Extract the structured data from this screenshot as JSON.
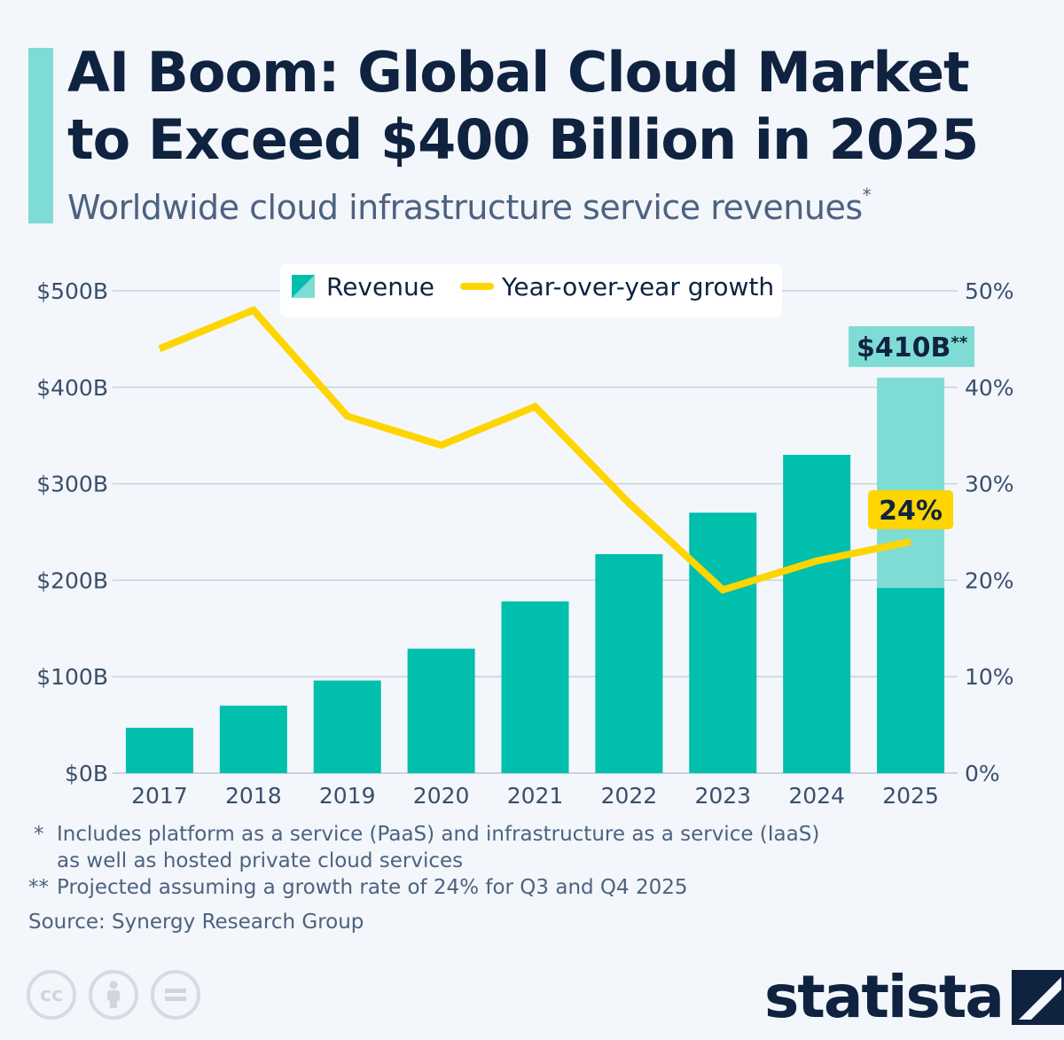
{
  "header": {
    "title": "AI Boom: Global Cloud Market to Exceed $400 Billion in 2025",
    "subtitle": "Worldwide cloud infrastructure service revenues",
    "subtitle_mark": "*"
  },
  "chart_data": {
    "type": "bar",
    "categories": [
      "2017",
      "2018",
      "2019",
      "2020",
      "2021",
      "2022",
      "2023",
      "2024",
      "2025"
    ],
    "series": [
      {
        "name": "Revenue",
        "type": "bar",
        "axis": "left",
        "values": [
          47,
          70,
          96,
          129,
          178,
          227,
          270,
          330,
          410
        ],
        "actual_2025": 192,
        "projected_2025": 410
      },
      {
        "name": "Year-over-year growth",
        "type": "line",
        "axis": "right",
        "values": [
          44,
          48,
          37,
          34,
          38,
          28,
          19,
          22,
          24
        ]
      }
    ],
    "left_axis": {
      "ticks": [
        "$0B",
        "$100B",
        "$200B",
        "$300B",
        "$400B",
        "$500B"
      ],
      "ylim": [
        0,
        500
      ]
    },
    "right_axis": {
      "ticks": [
        "0%",
        "10%",
        "20%",
        "30%",
        "40%",
        "50%"
      ],
      "ylim": [
        0,
        50
      ]
    },
    "annotations": {
      "bar_label": "$410B",
      "bar_label_mark": "**",
      "line_label": "24%"
    },
    "legend": {
      "placement": "top-center",
      "items": [
        "Revenue",
        "Year-over-year growth"
      ]
    },
    "grid": true,
    "colors": {
      "bar": "#00bfad",
      "bar_projected": "#7fdcd4",
      "line": "#fdd500",
      "grid": "#c9d2dd"
    }
  },
  "notes": [
    {
      "mark": "*",
      "lines": [
        "Includes platform as a service (PaaS) and infrastructure as a service (IaaS)",
        "as well as hosted private cloud services"
      ]
    },
    {
      "mark": "**",
      "lines": [
        "Projected assuming a growth rate of 24% for Q3 and Q4 2025"
      ]
    }
  ],
  "source": "Source: Synergy Research Group",
  "license_icons": [
    "creative-commons-icon",
    "attribution-icon",
    "no-derivatives-icon"
  ],
  "brand": {
    "name": "statista"
  }
}
